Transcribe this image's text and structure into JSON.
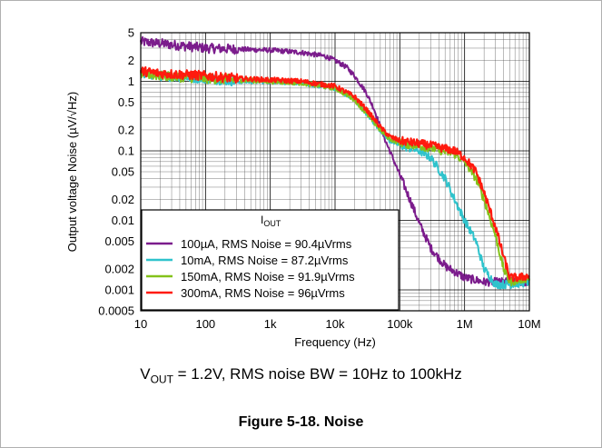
{
  "chart_data": {
    "type": "line",
    "xscale": "log",
    "yscale": "log",
    "xlim": [
      10,
      10000000
    ],
    "ylim": [
      0.0005,
      5
    ],
    "xlabel": "Frequency (Hz)",
    "ylabel": "Output voltage Noise (µV/√Hz)",
    "x_ticks": [
      {
        "v": 10,
        "label": "10"
      },
      {
        "v": 100,
        "label": "100"
      },
      {
        "v": 1000,
        "label": "1k"
      },
      {
        "v": 10000,
        "label": "10k"
      },
      {
        "v": 100000,
        "label": "100k"
      },
      {
        "v": 1000000,
        "label": "1M"
      },
      {
        "v": 10000000,
        "label": "10M"
      }
    ],
    "y_ticks": [
      {
        "v": 5,
        "label": "5"
      },
      {
        "v": 2,
        "label": "2"
      },
      {
        "v": 1,
        "label": "1"
      },
      {
        "v": 0.5,
        "label": "0.5"
      },
      {
        "v": 0.2,
        "label": "0.2"
      },
      {
        "v": 0.1,
        "label": "0.1"
      },
      {
        "v": 0.05,
        "label": "0.05"
      },
      {
        "v": 0.02,
        "label": "0.02"
      },
      {
        "v": 0.01,
        "label": "0.01"
      },
      {
        "v": 0.005,
        "label": "0.005"
      },
      {
        "v": 0.002,
        "label": "0.002"
      },
      {
        "v": 0.001,
        "label": "0.001"
      },
      {
        "v": 0.0005,
        "label": "0.0005"
      }
    ],
    "grid": true,
    "legend_position": "lower-left",
    "legend_title": "IOUT",
    "series": [
      {
        "name": "100µA, RMS Noise = 90.4µVrms",
        "color": "#7b1c8c",
        "points": [
          [
            10,
            3.7
          ],
          [
            20,
            3.5
          ],
          [
            50,
            3.2
          ],
          [
            100,
            3.0
          ],
          [
            300,
            2.9
          ],
          [
            1000,
            2.8
          ],
          [
            3000,
            2.6
          ],
          [
            7000,
            2.3
          ],
          [
            10000,
            2.0
          ],
          [
            15000,
            1.6
          ],
          [
            20000,
            1.2
          ],
          [
            30000,
            0.7
          ],
          [
            40000,
            0.4
          ],
          [
            50000,
            0.22
          ],
          [
            60000,
            0.14
          ],
          [
            70000,
            0.1
          ],
          [
            100000,
            0.045
          ],
          [
            150000,
            0.018
          ],
          [
            200000,
            0.009
          ],
          [
            300000,
            0.004
          ],
          [
            500000,
            0.0022
          ],
          [
            1000000,
            0.0015
          ],
          [
            2000000,
            0.0013
          ],
          [
            5000000,
            0.0013
          ],
          [
            10000000,
            0.0013
          ]
        ]
      },
      {
        "name": "10mA, RMS Noise = 87.2µVrms",
        "color": "#2fc3cc",
        "points": [
          [
            10,
            1.3
          ],
          [
            20,
            1.2
          ],
          [
            100,
            1.1
          ],
          [
            300,
            1.0
          ],
          [
            1000,
            1.0
          ],
          [
            3000,
            0.95
          ],
          [
            10000,
            0.8
          ],
          [
            20000,
            0.55
          ],
          [
            30000,
            0.35
          ],
          [
            50000,
            0.2
          ],
          [
            70000,
            0.14
          ],
          [
            100000,
            0.12
          ],
          [
            200000,
            0.1
          ],
          [
            300000,
            0.08
          ],
          [
            500000,
            0.04
          ],
          [
            700000,
            0.02
          ],
          [
            1000000,
            0.01
          ],
          [
            1500000,
            0.005
          ],
          [
            2000000,
            0.002
          ],
          [
            3000000,
            0.0012
          ],
          [
            5000000,
            0.0012
          ],
          [
            10000000,
            0.0013
          ]
        ]
      },
      {
        "name": "150mA, RMS Noise = 91.9µVrms",
        "color": "#84c21a",
        "points": [
          [
            10,
            1.3
          ],
          [
            20,
            1.2
          ],
          [
            100,
            1.1
          ],
          [
            300,
            1.05
          ],
          [
            1000,
            1.0
          ],
          [
            3000,
            0.95
          ],
          [
            10000,
            0.8
          ],
          [
            20000,
            0.55
          ],
          [
            30000,
            0.35
          ],
          [
            50000,
            0.2
          ],
          [
            70000,
            0.15
          ],
          [
            100000,
            0.13
          ],
          [
            300000,
            0.11
          ],
          [
            700000,
            0.09
          ],
          [
            1000000,
            0.07
          ],
          [
            1500000,
            0.04
          ],
          [
            2000000,
            0.02
          ],
          [
            3000000,
            0.006
          ],
          [
            4000000,
            0.002
          ],
          [
            5000000,
            0.0013
          ],
          [
            10000000,
            0.0015
          ]
        ]
      },
      {
        "name": "300mA, RMS Noise = 96µVrms",
        "color": "#ff1a0e",
        "points": [
          [
            10,
            1.4
          ],
          [
            20,
            1.3
          ],
          [
            100,
            1.2
          ],
          [
            300,
            1.1
          ],
          [
            1000,
            1.05
          ],
          [
            3000,
            1.0
          ],
          [
            10000,
            0.85
          ],
          [
            20000,
            0.6
          ],
          [
            30000,
            0.4
          ],
          [
            50000,
            0.22
          ],
          [
            70000,
            0.16
          ],
          [
            100000,
            0.14
          ],
          [
            300000,
            0.12
          ],
          [
            700000,
            0.1
          ],
          [
            1000000,
            0.08
          ],
          [
            1500000,
            0.05
          ],
          [
            2000000,
            0.025
          ],
          [
            3000000,
            0.008
          ],
          [
            4000000,
            0.003
          ],
          [
            5000000,
            0.0015
          ],
          [
            7000000,
            0.0015
          ],
          [
            10000000,
            0.0016
          ]
        ]
      }
    ]
  },
  "caption": {
    "condition_prefix": "V",
    "condition_sub": "OUT",
    "condition_rest": " = 1.2V, RMS noise BW = 10Hz to 100kHz",
    "figure": "Figure 5-18. Noise"
  }
}
